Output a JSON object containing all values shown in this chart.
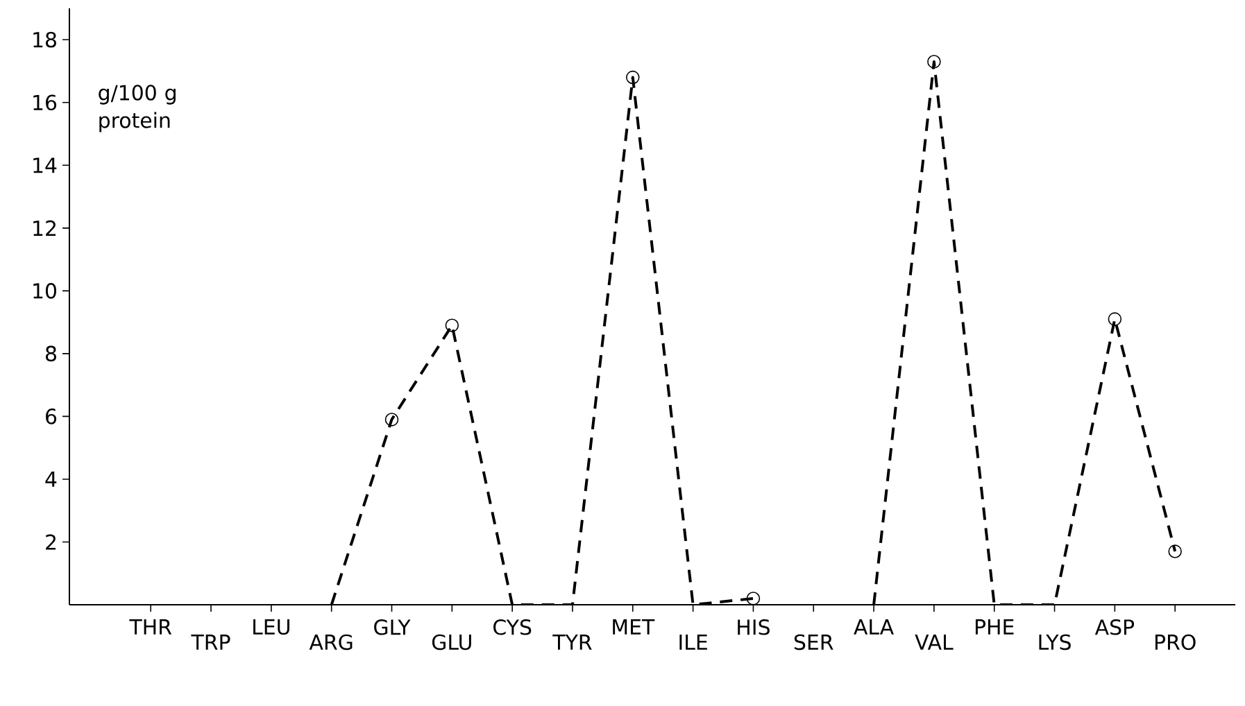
{
  "chart_data": {
    "type": "line",
    "ylabel": "g/100 g protein",
    "categories": [
      "THR",
      "TRP",
      "LEU",
      "ARG",
      "GLY",
      "GLU",
      "CYS",
      "TYR",
      "MET",
      "ILE",
      "HIS",
      "SER",
      "ALA",
      "VAL",
      "PHE",
      "LYS",
      "ASP",
      "PRO"
    ],
    "values": [
      null,
      null,
      null,
      0,
      5.9,
      8.9,
      0,
      0,
      16.8,
      0,
      0.2,
      null,
      0,
      17.3,
      0,
      0,
      9.1,
      1.7
    ],
    "color": "#000000",
    "ylim": [
      0,
      19
    ],
    "yticks": [
      2,
      4,
      6,
      8,
      10,
      12,
      14,
      16,
      18
    ],
    "marker": "circle",
    "line_style": "dashed"
  }
}
